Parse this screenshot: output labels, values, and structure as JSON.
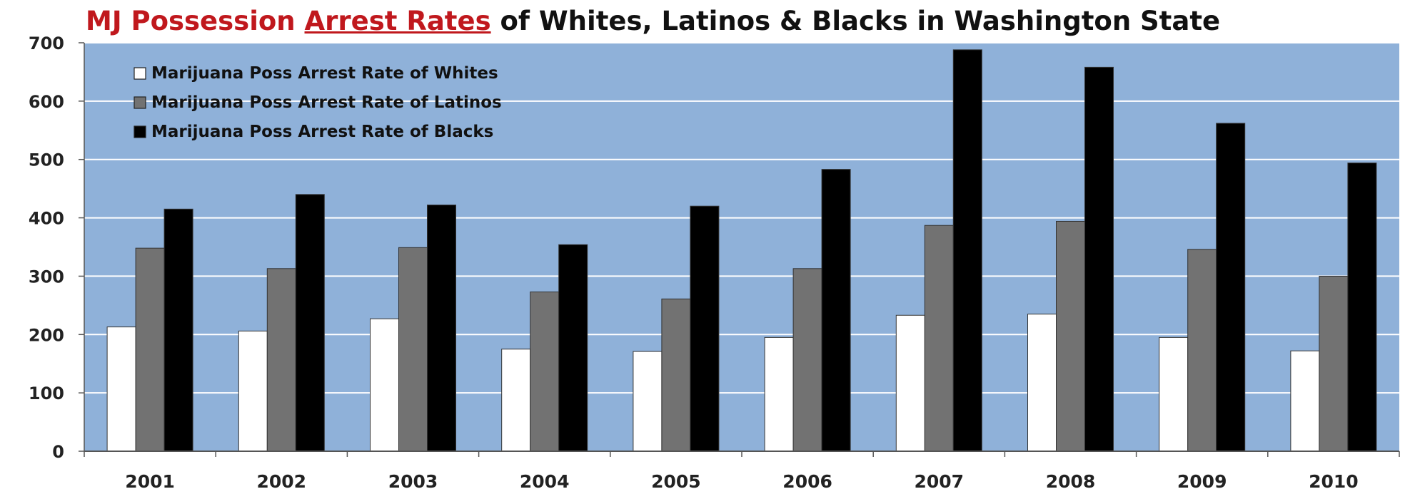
{
  "title": {
    "part1": "MJ Possession ",
    "part2": "Arrest Rates",
    "part3": " of Whites, Latinos & Blacks in Washington State"
  },
  "colors": {
    "plot_bg": "#8fb1d9",
    "grid": "#ffffff",
    "title_red": "#c0181d",
    "whites": "#ffffff",
    "latinos": "#727272",
    "blacks": "#000000"
  },
  "chart_data": {
    "type": "bar",
    "categories": [
      "2001",
      "2002",
      "2003",
      "2004",
      "2005",
      "2006",
      "2007",
      "2008",
      "2009",
      "2010"
    ],
    "series": [
      {
        "name": "Marijuana Poss Arrest Rate of Whites",
        "values": [
          213,
          206,
          227,
          175,
          171,
          195,
          233,
          235,
          195,
          172
        ]
      },
      {
        "name": "Marijuana Poss Arrest Rate of Latinos",
        "values": [
          348,
          313,
          349,
          273,
          261,
          313,
          387,
          394,
          346,
          300
        ]
      },
      {
        "name": "Marijuana Poss Arrest Rate of Blacks",
        "values": [
          415,
          440,
          422,
          354,
          420,
          483,
          688,
          658,
          562,
          494
        ]
      }
    ],
    "ylim": [
      0,
      700
    ],
    "yticks": [
      "0",
      "100",
      "200",
      "300",
      "400",
      "500",
      "600",
      "700"
    ],
    "grid": true,
    "legend_position": "top-left"
  }
}
